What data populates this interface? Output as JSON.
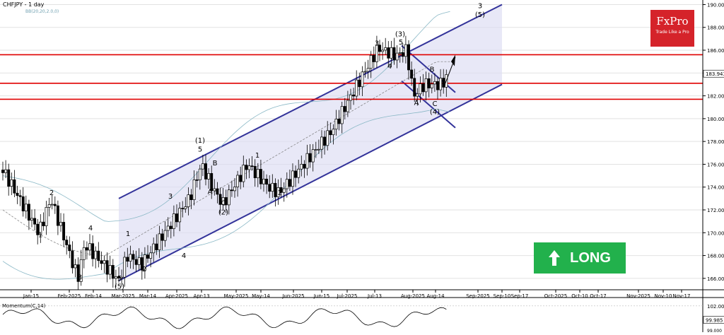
{
  "chart_title": "CHFJPY - 1 day",
  "bb_label": "BB(20,20,2.0,0)",
  "momentum_label": "Momentum(C,14)",
  "brand": {
    "name": "FxPro",
    "tagline": "Trade Like a Pro",
    "color": "#d5232a"
  },
  "signal": {
    "label": "LONG",
    "color": "#22b14c",
    "icon": "up-arrow-icon"
  },
  "chart_data": [
    {
      "type": "candlestick",
      "title": "CHFJPY - 1 day",
      "x_tick_labels": [
        "Jan-15",
        "Feb-2025",
        "Feb-14",
        "Mar-2025",
        "Mar-14",
        "Apr-2025",
        "Apr-13",
        "May-2025",
        "May-14",
        "Jun-2025",
        "Jun-15",
        "Jul-2025",
        "Jul-13",
        "Aug-2025",
        "Aug-14",
        "Sep-2025",
        "Sep-10",
        "Sep-17",
        "Oct-2025",
        "Oct-10",
        "Oct-17",
        "Nov-2025",
        "Nov-10",
        "Nov-17"
      ],
      "ylim": [
        165,
        190.4
      ],
      "y_ticks": [
        166.0,
        168.0,
        170.0,
        172.0,
        174.0,
        176.0,
        178.0,
        180.0,
        182.0,
        184.0,
        186.0,
        188.0,
        190.0
      ],
      "current_price": "183.943",
      "horizontal_levels": [
        185.6,
        183.1,
        181.7
      ],
      "level_color": "#e00000",
      "channel_color": "#33339a",
      "wave_labels": [
        {
          "text": "2",
          "x": "Jan-25",
          "y": 173.3
        },
        {
          "text": "1",
          "x": "Jan-28",
          "y": 169.6
        },
        {
          "text": "4",
          "x": "Feb-18",
          "y": 170.2
        },
        {
          "text": "3",
          "x": "Feb-09",
          "y": 165.9
        },
        {
          "text": "5",
          "x": "Mar-01",
          "y": 165.8
        },
        {
          "text": "(5)",
          "x": "Mar-01",
          "y": 165.1
        },
        {
          "text": "1",
          "x": "Mar-05",
          "y": 169.7
        },
        {
          "text": "2",
          "x": "Mar-16",
          "y": 166.6
        },
        {
          "text": "3",
          "x": "Apr-02",
          "y": 173.0
        },
        {
          "text": "4",
          "x": "Apr-06",
          "y": 167.8
        },
        {
          "text": "(1)",
          "x": "Apr-16",
          "y": 177.9
        },
        {
          "text": "5",
          "x": "Apr-16",
          "y": 177.1
        },
        {
          "text": "B",
          "x": "Apr-26",
          "y": 175.9
        },
        {
          "text": "A",
          "x": "Apr-21",
          "y": 173.4
        },
        {
          "text": "C",
          "x": "Apr-30",
          "y": 172.4
        },
        {
          "text": "(2)",
          "x": "Apr-30",
          "y": 171.6
        },
        {
          "text": "1",
          "x": "May-22",
          "y": 176.6
        },
        {
          "text": "2",
          "x": "Jun-01",
          "y": 173.3
        },
        {
          "text": "3",
          "x": "Jul-24",
          "y": 186.4
        },
        {
          "text": "(3)",
          "x": "Aug-03",
          "y": 187.2
        },
        {
          "text": "5",
          "x": "Aug-02",
          "y": 186.5
        },
        {
          "text": "4",
          "x": "Jul-30",
          "y": 184.4
        },
        {
          "text": "B",
          "x": "Aug-23",
          "y": 184.1
        },
        {
          "text": "A",
          "x": "Aug-08",
          "y": 181.2
        },
        {
          "text": "C",
          "x": "Aug-20",
          "y": 181.1
        },
        {
          "text": "(4)",
          "x": "Aug-20",
          "y": 180.4
        },
        {
          "text": "3",
          "x": "Oct-04",
          "y": 189.7
        },
        {
          "text": "(5)",
          "x": "Oct-04",
          "y": 188.9
        }
      ]
    },
    {
      "type": "line",
      "title": "Momentum(C,14)",
      "ylim": [
        98.2,
        102.9
      ],
      "y_ticks": [
        "102.000"
      ],
      "current_value": "99.985",
      "reference_value": "99.000"
    }
  ]
}
